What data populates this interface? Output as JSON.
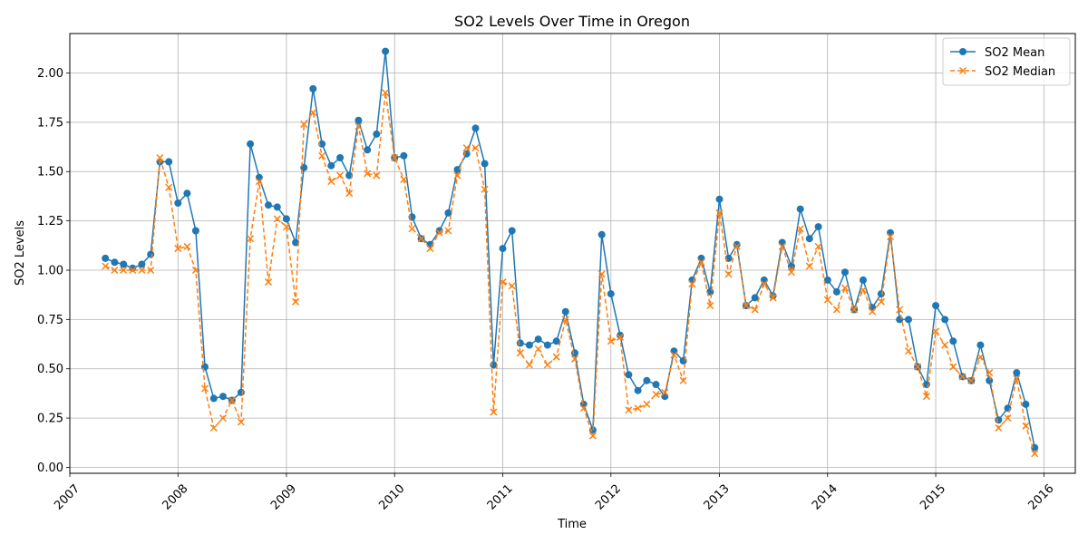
{
  "chart_data": {
    "type": "line",
    "title": "SO2 Levels Over Time in Oregon",
    "xlabel": "Time",
    "ylabel": "SO2 Levels",
    "x_ticks": [
      "2007",
      "2008",
      "2009",
      "2010",
      "2011",
      "2012",
      "2013",
      "2014",
      "2015",
      "2016"
    ],
    "y_ticks": [
      "0.00",
      "0.25",
      "0.50",
      "0.75",
      "1.00",
      "1.25",
      "1.50",
      "1.75",
      "2.00"
    ],
    "xlim": [
      "2007-01-01",
      "2016-04-16"
    ],
    "ylim": [
      -0.03,
      2.2
    ],
    "grid": true,
    "legend_position": "top-right",
    "x": [
      "2007-05",
      "2007-06",
      "2007-07",
      "2007-08",
      "2007-09",
      "2007-10",
      "2007-11",
      "2007-12",
      "2008-01",
      "2008-02",
      "2008-03",
      "2008-04",
      "2008-05",
      "2008-06",
      "2008-07",
      "2008-08",
      "2008-09",
      "2008-10",
      "2008-11",
      "2008-12",
      "2009-01",
      "2009-02",
      "2009-03",
      "2009-04",
      "2009-05",
      "2009-06",
      "2009-07",
      "2009-08",
      "2009-09",
      "2009-10",
      "2009-11",
      "2009-12",
      "2010-01",
      "2010-02",
      "2010-03",
      "2010-04",
      "2010-05",
      "2010-06",
      "2010-07",
      "2010-08",
      "2010-09",
      "2010-10",
      "2010-11",
      "2010-12",
      "2011-01",
      "2011-02",
      "2011-03",
      "2011-04",
      "2011-05",
      "2011-06",
      "2011-07",
      "2011-08",
      "2011-09",
      "2011-10",
      "2011-11",
      "2011-12",
      "2012-01",
      "2012-02",
      "2012-03",
      "2012-04",
      "2012-05",
      "2012-06",
      "2012-07",
      "2012-08",
      "2012-09",
      "2012-10",
      "2012-11",
      "2012-12",
      "2013-01",
      "2013-02",
      "2013-03",
      "2013-04",
      "2013-05",
      "2013-06",
      "2013-07",
      "2013-08",
      "2013-09",
      "2013-10",
      "2013-11",
      "2013-12",
      "2014-01",
      "2014-02",
      "2014-03",
      "2014-04",
      "2014-05",
      "2014-06",
      "2014-07",
      "2014-08",
      "2014-09",
      "2014-10",
      "2014-11",
      "2014-12",
      "2015-01",
      "2015-02",
      "2015-03",
      "2015-04",
      "2015-05",
      "2015-06",
      "2015-07",
      "2015-08",
      "2015-09",
      "2015-10",
      "2015-11",
      "2015-12"
    ],
    "series": [
      {
        "name": "SO2 Mean",
        "color": "#1f77b4",
        "style": "solid",
        "marker": "circle",
        "values": [
          1.06,
          1.04,
          1.03,
          1.01,
          1.03,
          1.08,
          1.55,
          1.55,
          1.34,
          1.39,
          1.2,
          0.51,
          0.35,
          0.36,
          0.34,
          0.38,
          1.64,
          1.47,
          1.33,
          1.32,
          1.26,
          1.14,
          1.52,
          1.92,
          1.64,
          1.53,
          1.57,
          1.48,
          1.76,
          1.61,
          1.69,
          2.11,
          1.57,
          1.58,
          1.27,
          1.16,
          1.13,
          1.2,
          1.29,
          1.51,
          1.59,
          1.72,
          1.54,
          0.52,
          1.11,
          1.2,
          0.63,
          0.62,
          0.65,
          0.62,
          0.64,
          0.79,
          0.58,
          0.32,
          0.19,
          1.18,
          0.88,
          0.67,
          0.47,
          0.39,
          0.44,
          0.42,
          0.36,
          0.59,
          0.54,
          0.95,
          1.06,
          0.89,
          1.36,
          1.06,
          1.13,
          0.82,
          0.86,
          0.95,
          0.87,
          1.14,
          1.02,
          1.31,
          1.16,
          1.22,
          0.95,
          0.89,
          0.99,
          0.8,
          0.95,
          0.81,
          0.88,
          1.19,
          0.75,
          0.75,
          0.51,
          0.42,
          0.82,
          0.75,
          0.64,
          0.46,
          0.44,
          0.62,
          0.44,
          0.24,
          0.3,
          0.48,
          0.32,
          0.1
        ]
      },
      {
        "name": "SO2 Median",
        "color": "#ff7f0e",
        "style": "dashed",
        "marker": "x",
        "values": [
          1.02,
          1.0,
          1.0,
          1.0,
          1.0,
          1.0,
          1.57,
          1.42,
          1.11,
          1.12,
          1.0,
          0.4,
          0.2,
          0.25,
          0.34,
          0.23,
          1.16,
          1.45,
          0.94,
          1.26,
          1.22,
          0.84,
          1.74,
          1.8,
          1.58,
          1.45,
          1.48,
          1.39,
          1.73,
          1.49,
          1.48,
          1.9,
          1.57,
          1.46,
          1.21,
          1.16,
          1.11,
          1.19,
          1.2,
          1.48,
          1.62,
          1.62,
          1.41,
          0.28,
          0.94,
          0.92,
          0.58,
          0.52,
          0.6,
          0.52,
          0.56,
          0.75,
          0.55,
          0.3,
          0.16,
          0.98,
          0.64,
          0.66,
          0.29,
          0.3,
          0.32,
          0.37,
          0.38,
          0.57,
          0.44,
          0.93,
          1.04,
          0.82,
          1.29,
          0.98,
          1.12,
          0.82,
          0.8,
          0.93,
          0.86,
          1.12,
          0.99,
          1.21,
          1.02,
          1.12,
          0.85,
          0.8,
          0.91,
          0.8,
          0.9,
          0.79,
          0.84,
          1.17,
          0.8,
          0.59,
          0.51,
          0.36,
          0.69,
          0.62,
          0.51,
          0.46,
          0.44,
          0.56,
          0.48,
          0.2,
          0.25,
          0.45,
          0.21,
          0.07
        ]
      }
    ]
  }
}
